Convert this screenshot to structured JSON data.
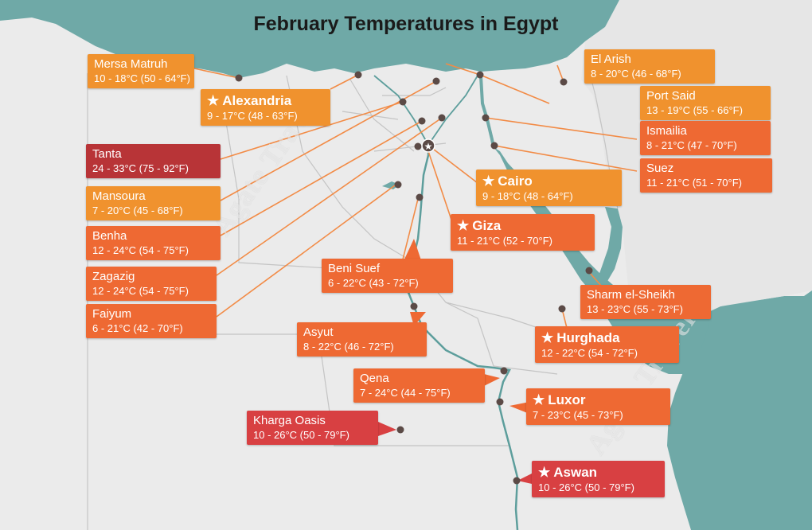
{
  "title": "February Temperatures in Egypt",
  "watermark": "Agate Travel",
  "colors": {
    "sea": "#6fa9a7",
    "land": "#ebebeb",
    "neighbor_land": "#e3e3e3",
    "border": "#c4c4c4",
    "nile": "#5d9e9c",
    "city_dot": "#5b4a46",
    "connector": "#f28b46",
    "warm_orange": "#f0922e",
    "orange_red": "#ee6933",
    "red": "#d84042",
    "dark_red": "#b83437"
  },
  "cities": [
    {
      "id": "mersa-matruh",
      "name": "Mersa Matruh",
      "temp": "10 - 18°C (50 - 64°F)",
      "capital": false,
      "color": "#f0922e"
    },
    {
      "id": "alexandria",
      "name": "Alexandria",
      "temp": "9 - 17°C (48 - 63°F)",
      "capital": true,
      "color": "#f0922e"
    },
    {
      "id": "el-arish",
      "name": "El Arish",
      "temp": "8 - 20°C (46 - 68°F)",
      "capital": false,
      "color": "#f0922e"
    },
    {
      "id": "port-said",
      "name": "Port Said",
      "temp": "13 - 19°C (55 - 66°F)",
      "capital": false,
      "color": "#f0922e"
    },
    {
      "id": "ismailia",
      "name": "Ismailia",
      "temp": "8 - 21°C (47 - 70°F)",
      "capital": false,
      "color": "#ee6933"
    },
    {
      "id": "suez",
      "name": "Suez",
      "temp": "11 - 21°C (51 - 70°F)",
      "capital": false,
      "color": "#ee6933"
    },
    {
      "id": "tanta",
      "name": "Tanta",
      "temp": "24 - 33°C (75 - 92°F)",
      "capital": false,
      "color": "#b83437"
    },
    {
      "id": "mansoura",
      "name": "Mansoura",
      "temp": "7 - 20°C (45 - 68°F)",
      "capital": false,
      "color": "#f0922e"
    },
    {
      "id": "benha",
      "name": "Benha",
      "temp": "12 - 24°C (54 - 75°F)",
      "capital": false,
      "color": "#ee6933"
    },
    {
      "id": "zagazig",
      "name": "Zagazig",
      "temp": "12 - 24°C (54 - 75°F)",
      "capital": false,
      "color": "#ee6933"
    },
    {
      "id": "faiyum",
      "name": "Faiyum",
      "temp": "6 - 21°C (42 - 70°F)",
      "capital": false,
      "color": "#ee6933"
    },
    {
      "id": "cairo",
      "name": "Cairo",
      "temp": "9 - 18°C (48 - 64°F)",
      "capital": true,
      "color": "#f0922e"
    },
    {
      "id": "giza",
      "name": "Giza",
      "temp": "11 - 21°C (52 - 70°F)",
      "capital": true,
      "color": "#ee6933"
    },
    {
      "id": "beni-suef",
      "name": "Beni Suef",
      "temp": "6 - 22°C (43 - 72°F)",
      "capital": false,
      "color": "#ee6933"
    },
    {
      "id": "asyut",
      "name": "Asyut",
      "temp": "8 - 22°C (46 - 72°F)",
      "capital": false,
      "color": "#ee6933"
    },
    {
      "id": "sharm-el-sheikh",
      "name": "Sharm el-Sheikh",
      "temp": "13 - 23°C (55 - 73°F)",
      "capital": false,
      "color": "#ee6933"
    },
    {
      "id": "hurghada",
      "name": "Hurghada",
      "temp": "12 - 22°C (54 - 72°F)",
      "capital": true,
      "color": "#ee6933"
    },
    {
      "id": "qena",
      "name": "Qena",
      "temp": "7 - 24°C (44 - 75°F)",
      "capital": false,
      "color": "#ee6933"
    },
    {
      "id": "luxor",
      "name": "Luxor",
      "temp": "7 - 23°C (45 - 73°F)",
      "capital": true,
      "color": "#ee6933"
    },
    {
      "id": "kharga-oasis",
      "name": "Kharga Oasis",
      "temp": "10 - 26°C (50 - 79°F)",
      "capital": false,
      "color": "#d84042"
    },
    {
      "id": "aswan",
      "name": "Aswan",
      "temp": "10 - 26°C (50 - 79°F)",
      "capital": true,
      "color": "#d84042"
    }
  ]
}
